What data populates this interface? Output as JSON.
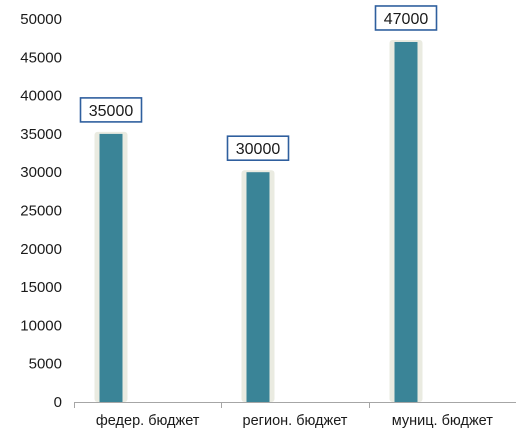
{
  "chart_data": {
    "type": "bar",
    "categories": [
      "федер. бюджет",
      "регион. бюджет",
      "муниц. бюджет"
    ],
    "values": [
      35000,
      30000,
      47000
    ],
    "data_labels": [
      "35000",
      "30000",
      "47000"
    ],
    "y_ticks": [
      "0",
      "5000",
      "10000",
      "15000",
      "20000",
      "25000",
      "30000",
      "35000",
      "40000",
      "45000",
      "50000"
    ],
    "ylim": [
      0,
      50000
    ],
    "title": "",
    "xlabel": "",
    "ylabel": "",
    "grid": false,
    "legend": "none",
    "colors": {
      "bar": "#3a8497",
      "bar_glow": "#d9dbc9",
      "label_border": "#2f5f9e",
      "axis": "#a6a6a6"
    }
  }
}
